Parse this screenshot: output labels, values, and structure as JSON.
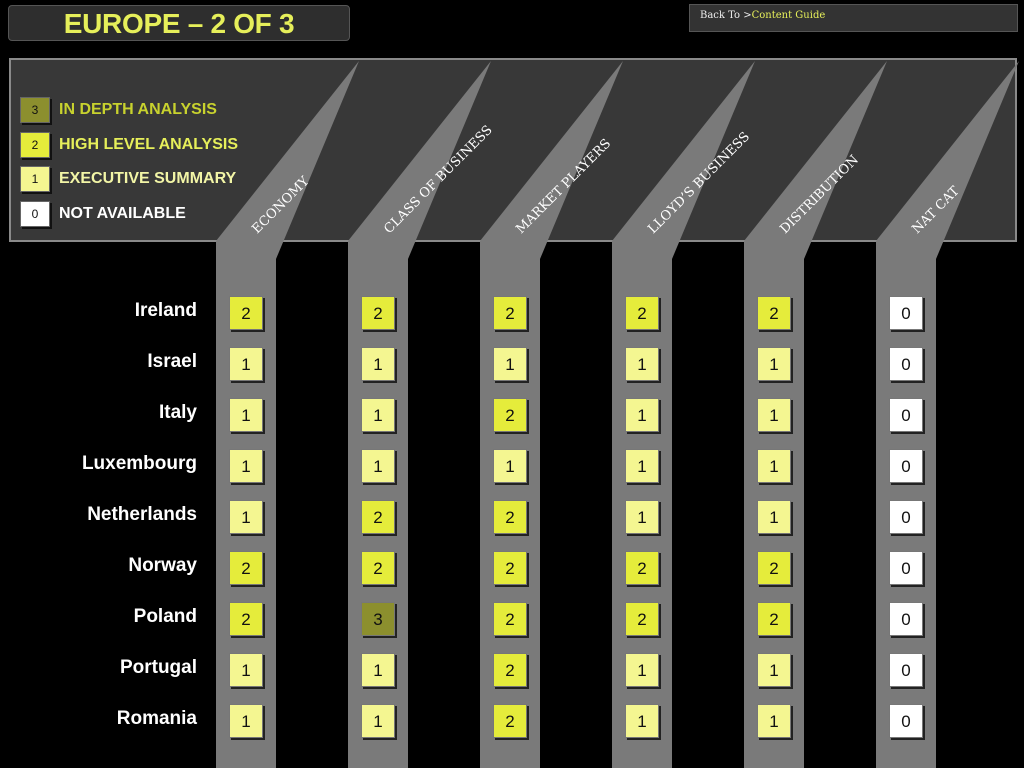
{
  "header": {
    "title": "EUROPE – 2 OF 3",
    "nav_prefix": "Back To >",
    "nav_link": "Content Guide"
  },
  "legend": [
    {
      "value": "3",
      "label": "IN DEPTH ANALYSIS",
      "level": 3,
      "label_color": "#c8d22e"
    },
    {
      "value": "2",
      "label": "HIGH LEVEL ANALYSIS",
      "level": 2,
      "label_color": "#e6ef5a"
    },
    {
      "value": "1",
      "label": "EXECUTIVE SUMMARY",
      "level": 1,
      "label_color": "#f2f5a6"
    },
    {
      "value": "0",
      "label": "NOT AVAILABLE",
      "level": 0,
      "label_color": "#ffffff"
    }
  ],
  "columns": [
    "ECONOMY",
    "CLASS OF BUSINESS",
    "MARKET PLAYERS",
    "LLOYD’S BUSINESS",
    "DISTRIBUTION",
    "NAT CAT"
  ],
  "rows": [
    {
      "country": "Ireland",
      "values": [
        2,
        2,
        2,
        2,
        2,
        0
      ]
    },
    {
      "country": "Israel",
      "values": [
        1,
        1,
        1,
        1,
        1,
        0
      ]
    },
    {
      "country": "Italy",
      "values": [
        1,
        1,
        2,
        1,
        1,
        0
      ]
    },
    {
      "country": "Luxembourg",
      "values": [
        1,
        1,
        1,
        1,
        1,
        0
      ]
    },
    {
      "country": "Netherlands",
      "values": [
        1,
        2,
        2,
        1,
        1,
        0
      ]
    },
    {
      "country": "Norway",
      "values": [
        2,
        2,
        2,
        2,
        2,
        0
      ]
    },
    {
      "country": "Poland",
      "values": [
        2,
        3,
        2,
        2,
        2,
        0
      ]
    },
    {
      "country": "Portugal",
      "values": [
        1,
        1,
        2,
        1,
        1,
        0
      ]
    },
    {
      "country": "Romania",
      "values": [
        1,
        1,
        2,
        1,
        1,
        0
      ]
    }
  ],
  "colors": {
    "level_3": "#8c8f2e",
    "level_2": "#e5ec3b",
    "level_1": "#f4f691",
    "level_0": "#ffffff",
    "accent": "#e6ef5a"
  }
}
